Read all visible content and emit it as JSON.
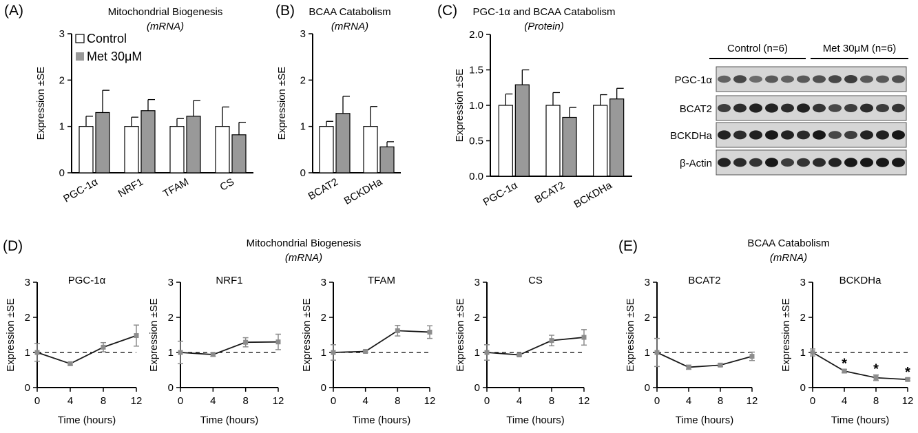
{
  "figure": {
    "colors": {
      "control": "#ffffff",
      "treated": "#999999",
      "axis": "#000000",
      "line": "#1a1a1a",
      "marker": "#8c8c8c"
    }
  },
  "chart_data": [
    {
      "id": "A",
      "panel_label": "(A)",
      "type": "bar",
      "title": "Mitochondrial Biogenesis",
      "subtitle": "(mRNA)",
      "ylabel": "Expression ±SE",
      "ylim": [
        0,
        3
      ],
      "yticks": [
        "0",
        "1",
        "2",
        "3"
      ],
      "categories": [
        "PGC-1α",
        "NRF1",
        "TFAM",
        "CS"
      ],
      "legend": [
        "Control",
        "Met 30μM"
      ],
      "series": [
        {
          "name": "Control",
          "values": [
            1.0,
            1.0,
            1.0,
            1.0
          ],
          "errors": [
            0.22,
            0.2,
            0.17,
            0.42
          ]
        },
        {
          "name": "Met 30μM",
          "values": [
            1.3,
            1.34,
            1.22,
            0.82
          ],
          "errors": [
            0.48,
            0.24,
            0.34,
            0.27
          ]
        }
      ]
    },
    {
      "id": "B",
      "panel_label": "(B)",
      "type": "bar",
      "title": "BCAA Catabolism",
      "subtitle": "(mRNA)",
      "ylabel": "Expression ±SE",
      "ylim": [
        0,
        3
      ],
      "yticks": [
        "0",
        "1",
        "2",
        "3"
      ],
      "categories": [
        "BCAT2",
        "BCKDHa"
      ],
      "series": [
        {
          "name": "Control",
          "values": [
            1.0,
            1.0
          ],
          "errors": [
            0.11,
            0.43
          ]
        },
        {
          "name": "Met 30μM",
          "values": [
            1.28,
            0.56
          ],
          "errors": [
            0.37,
            0.11
          ]
        }
      ]
    },
    {
      "id": "C",
      "panel_label": "(C)",
      "type": "bar",
      "title": "PGC-1α and BCAA Catabolism",
      "subtitle": "(Protein)",
      "ylabel": "Expression ±SE",
      "ylim": [
        0,
        2
      ],
      "yticks": [
        "0.0",
        "0.5",
        "1.0",
        "1.5",
        "2.0"
      ],
      "categories": [
        "PGC-1α",
        "BCAT2",
        "BCKDHa"
      ],
      "series": [
        {
          "name": "Control",
          "values": [
            1.0,
            1.0,
            1.0
          ],
          "errors": [
            0.16,
            0.18,
            0.15
          ]
        },
        {
          "name": "Met 30μM",
          "values": [
            1.29,
            0.83,
            1.09
          ],
          "errors": [
            0.21,
            0.14,
            0.15
          ]
        }
      ]
    },
    {
      "id": "D1",
      "panel_label": "(D)",
      "type": "line",
      "title": "PGC-1α",
      "ylabel": "Expression ±SE",
      "xlabel": "Time (hours)",
      "xlim": [
        0,
        12
      ],
      "ylim": [
        0,
        3
      ],
      "xticks": [
        "0",
        "4",
        "8",
        "12"
      ],
      "yticks": [
        "0",
        "1",
        "2",
        "3"
      ],
      "reference_y": 1,
      "x": [
        0,
        4,
        8,
        12
      ],
      "values": [
        1.0,
        0.68,
        1.15,
        1.48
      ],
      "errors": [
        0.25,
        0.04,
        0.13,
        0.3
      ]
    },
    {
      "id": "D2",
      "type": "line",
      "title": "NRF1",
      "ylabel": "Expression ±SE",
      "xlabel": "Time (hours)",
      "xlim": [
        0,
        12
      ],
      "ylim": [
        0,
        3
      ],
      "xticks": [
        "0",
        "4",
        "8",
        "12"
      ],
      "yticks": [
        "0",
        "1",
        "2",
        "3"
      ],
      "reference_y": 1,
      "x": [
        0,
        4,
        8,
        12
      ],
      "values": [
        1.0,
        0.94,
        1.29,
        1.3
      ],
      "errors": [
        0.32,
        0.05,
        0.13,
        0.22
      ]
    },
    {
      "id": "D3",
      "type": "line",
      "title": "TFAM",
      "ylabel": "Expression ±SE",
      "xlabel": "Time (hours)",
      "xlim": [
        0,
        12
      ],
      "ylim": [
        0,
        3
      ],
      "xticks": [
        "0",
        "4",
        "8",
        "12"
      ],
      "yticks": [
        "0",
        "1",
        "2",
        "3"
      ],
      "reference_y": 1,
      "x": [
        0,
        4,
        8,
        12
      ],
      "values": [
        1.0,
        1.03,
        1.62,
        1.58
      ],
      "errors": [
        0.22,
        0.03,
        0.15,
        0.18
      ]
    },
    {
      "id": "D4",
      "type": "line",
      "title": "CS",
      "ylabel": "Expression ±SE",
      "xlabel": "Time (hours)",
      "xlim": [
        0,
        12
      ],
      "ylim": [
        0,
        3
      ],
      "xticks": [
        "0",
        "4",
        "8",
        "12"
      ],
      "yticks": [
        "0",
        "1",
        "2",
        "3"
      ],
      "reference_y": 1,
      "x": [
        0,
        4,
        8,
        12
      ],
      "values": [
        1.0,
        0.93,
        1.34,
        1.43
      ],
      "errors": [
        0.22,
        0.03,
        0.15,
        0.22
      ]
    },
    {
      "id": "E1",
      "panel_label": "(E)",
      "type": "line",
      "title": "BCAT2",
      "ylabel": "Expression ±SE",
      "xlabel": "Time (hours)",
      "xlim": [
        0,
        12
      ],
      "ylim": [
        0,
        3
      ],
      "xticks": [
        "0",
        "4",
        "8",
        "12"
      ],
      "yticks": [
        "0",
        "1",
        "2",
        "3"
      ],
      "reference_y": 1,
      "x": [
        0,
        4,
        8,
        12
      ],
      "values": [
        1.0,
        0.58,
        0.64,
        0.89
      ],
      "errors": [
        0.4,
        0.06,
        0.04,
        0.12
      ]
    },
    {
      "id": "E2",
      "type": "line",
      "title": "BCKDHa",
      "ylabel": "Expression ±SE",
      "xlabel": "Time (hours)",
      "xlim": [
        0,
        12
      ],
      "ylim": [
        0,
        3
      ],
      "xticks": [
        "0",
        "4",
        "8",
        "12"
      ],
      "yticks": [
        "0",
        "1",
        "2",
        "3"
      ],
      "reference_y": 1,
      "x": [
        0,
        4,
        8,
        12
      ],
      "values": [
        1.0,
        0.47,
        0.28,
        0.23
      ],
      "errors": [
        0.1,
        0.05,
        0.08,
        0.04
      ],
      "annotations": [
        "",
        "*",
        "*",
        "*"
      ]
    }
  ],
  "group_titles": {
    "D": {
      "title": "Mitochondrial Biogenesis",
      "subtitle": "(mRNA)"
    },
    "E": {
      "title": "BCAA Catabolism",
      "subtitle": "(mRNA)"
    }
  },
  "western_blot": {
    "groups": [
      {
        "label": "Control (n=6)",
        "lanes": 6
      },
      {
        "label": "Met 30μM (n=6)",
        "lanes": 6
      }
    ],
    "rows": [
      {
        "label": "PGC-1α",
        "intensity": [
          0.55,
          0.7,
          0.5,
          0.6,
          0.55,
          0.6,
          0.65,
          0.7,
          0.75,
          0.6,
          0.6,
          0.65
        ]
      },
      {
        "label": "BCAT2",
        "intensity": [
          0.75,
          0.85,
          0.9,
          0.9,
          0.85,
          0.9,
          0.8,
          0.7,
          0.75,
          0.85,
          0.75,
          0.8
        ]
      },
      {
        "label": "BCKDHa",
        "intensity": [
          0.9,
          0.85,
          0.9,
          0.95,
          0.9,
          0.85,
          0.95,
          0.7,
          0.75,
          0.9,
          0.9,
          0.95
        ]
      },
      {
        "label": "β-Actin",
        "intensity": [
          0.9,
          0.85,
          0.8,
          0.95,
          0.75,
          0.8,
          0.85,
          0.9,
          0.95,
          0.95,
          0.95,
          0.95
        ]
      }
    ]
  }
}
